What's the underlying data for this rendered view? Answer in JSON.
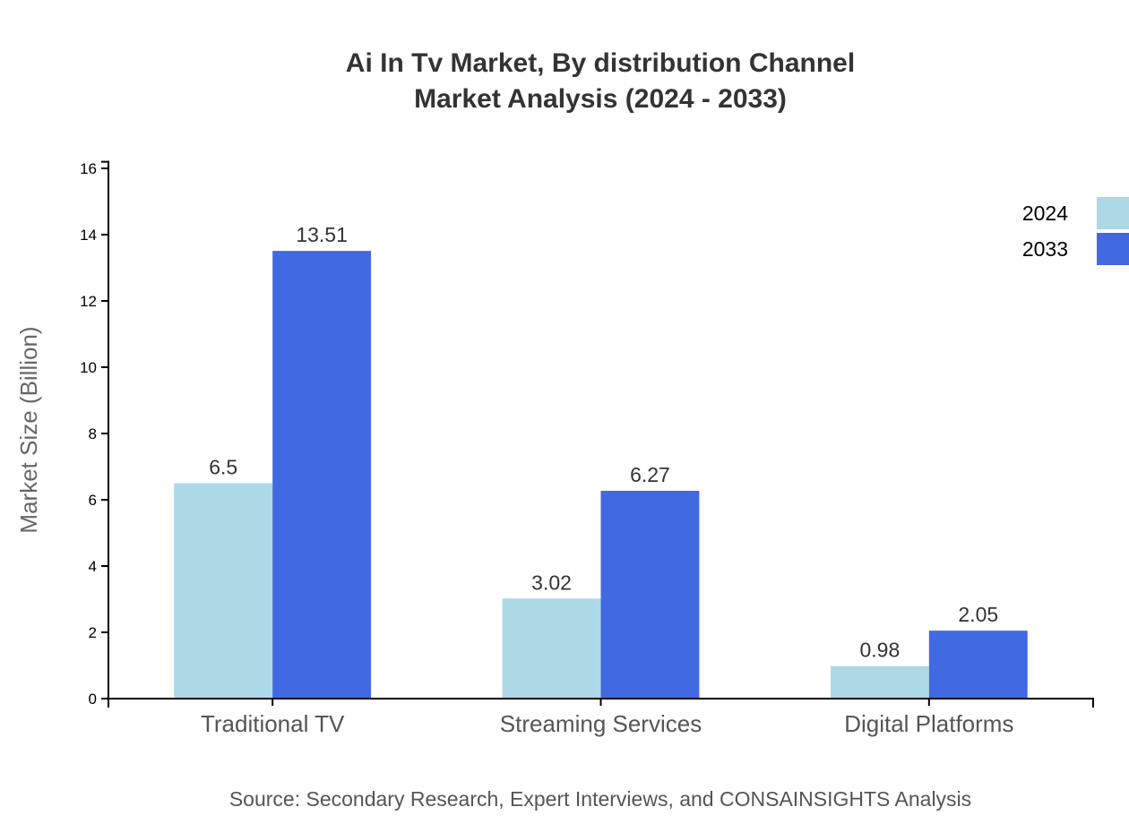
{
  "chart_data": {
    "type": "bar",
    "title": [
      "Ai In Tv Market, By distribution Channel",
      "Market Analysis (2024 - 2033)"
    ],
    "xlabel": "",
    "ylabel": "Market Size (Billion)",
    "ylim": [
      0,
      16.2
    ],
    "yticks": [
      0,
      2,
      4,
      6,
      8,
      10,
      12,
      14,
      16
    ],
    "categories": [
      "Traditional TV",
      "Streaming Services",
      "Digital Platforms"
    ],
    "series": [
      {
        "name": "2024",
        "color": "#add8e6",
        "values": [
          6.5,
          3.02,
          0.98
        ]
      },
      {
        "name": "2033",
        "color": "#4169e1",
        "values": [
          13.51,
          6.27,
          2.05
        ]
      }
    ],
    "legend": "top-right",
    "grid": false,
    "source": "Source: Secondary Research, Expert Interviews, and CONSAINSIGHTS Analysis"
  }
}
